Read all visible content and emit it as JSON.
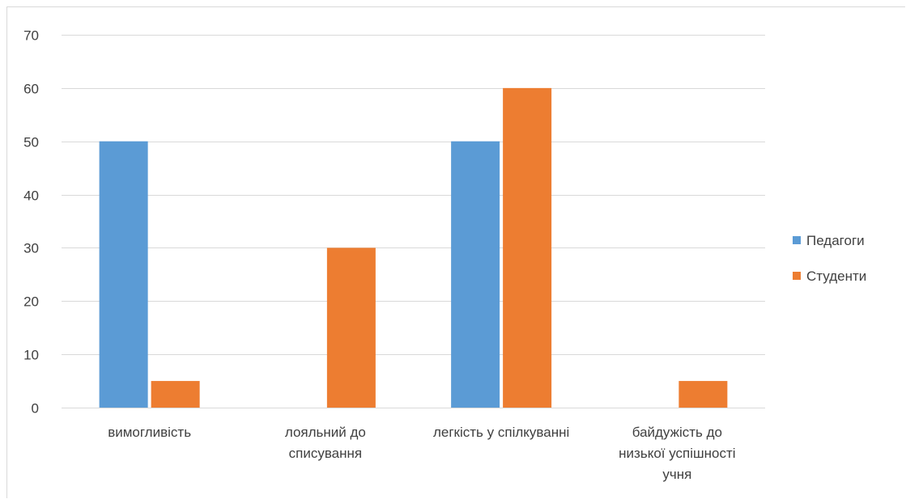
{
  "chart_data": {
    "type": "bar",
    "title": "",
    "xlabel": "",
    "ylabel": "",
    "ylim": [
      0,
      70
    ],
    "yticks": [
      0,
      10,
      20,
      30,
      40,
      50,
      60,
      70
    ],
    "grid": true,
    "legend_position": "right",
    "categories": [
      [
        "вимогливість"
      ],
      [
        "лояльний до",
        "списування"
      ],
      [
        "легкість у спілкуванні"
      ],
      [
        "байдужість до",
        "низької успішності",
        "учня"
      ]
    ],
    "series": [
      {
        "name": "Педагоги",
        "color": "#5b9bd5",
        "values": [
          50,
          0,
          50,
          0
        ]
      },
      {
        "name": "Студенти",
        "color": "#ed7d31",
        "values": [
          5,
          30,
          60,
          5
        ]
      }
    ]
  }
}
